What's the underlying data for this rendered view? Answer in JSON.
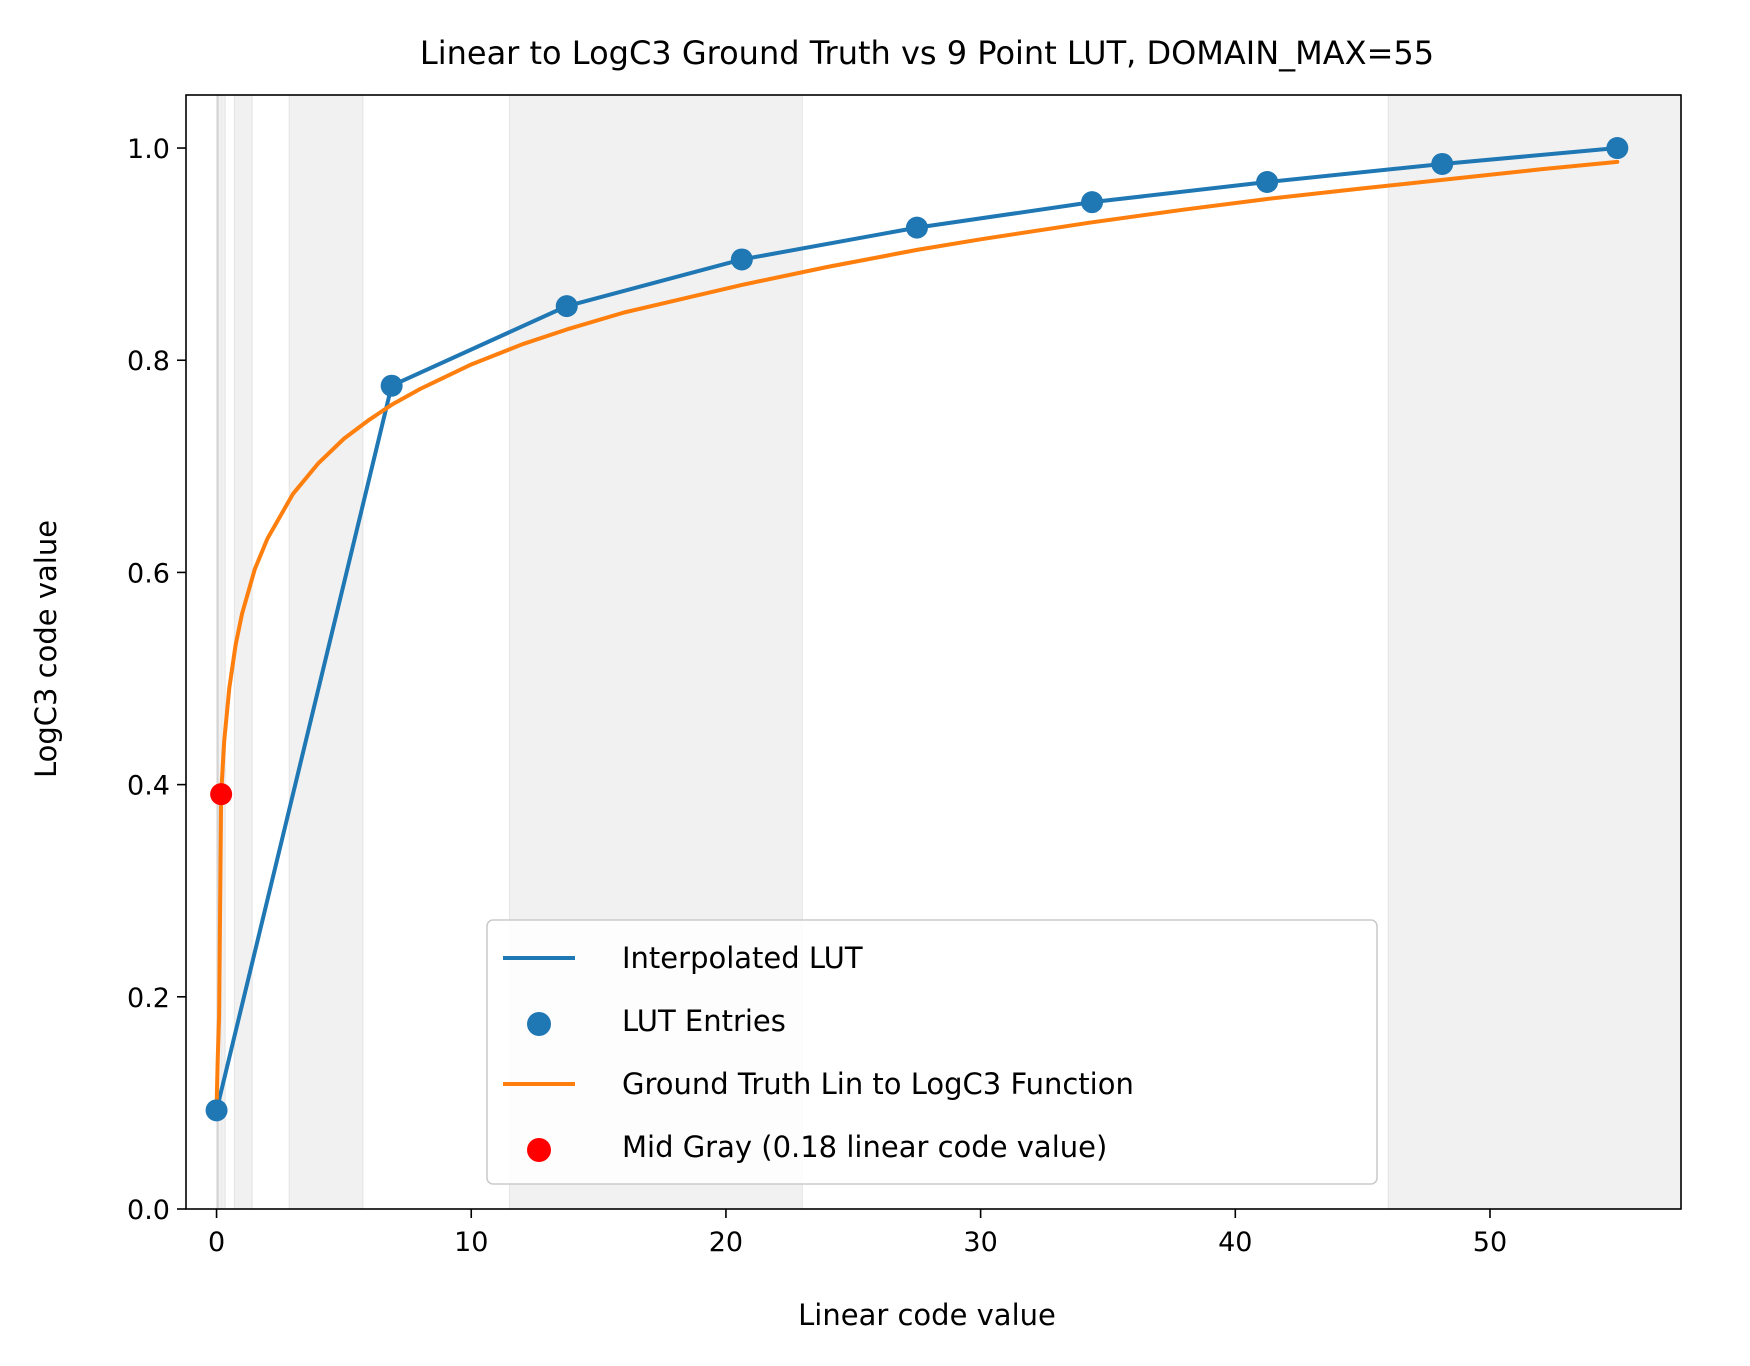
{
  "chart_data": {
    "type": "line",
    "title": "Linear to LogC3 Ground Truth vs 9 Point LUT, DOMAIN_MAX=55",
    "xlabel": "Linear code value",
    "ylabel": "LogC3 code value",
    "xlim": [
      -1.2,
      57.5
    ],
    "ylim": [
      0.0,
      1.05
    ],
    "xticks": [
      0,
      10,
      20,
      30,
      40,
      50
    ],
    "yticks": [
      0.0,
      0.2,
      0.4,
      0.6,
      0.8,
      1.0
    ],
    "xtick_labels": [
      "0",
      "10",
      "20",
      "30",
      "40",
      "50"
    ],
    "ytick_labels": [
      "0.0",
      "0.2",
      "0.4",
      "0.6",
      "0.8",
      "1.0"
    ],
    "grid": false,
    "legend_position": "lower-center",
    "shaded_bands": [
      [
        0.0,
        0.02
      ],
      [
        0.04,
        0.09
      ],
      [
        0.17,
        0.34
      ],
      [
        0.7,
        1.4
      ],
      [
        2.85,
        5.75
      ],
      [
        11.5,
        23.0
      ],
      [
        46.0,
        57.5
      ]
    ],
    "series": [
      {
        "name": "Interpolated LUT",
        "kind": "line",
        "color": "#1f77b4",
        "x": [
          0.0,
          6.875,
          13.75,
          20.625,
          27.5,
          34.375,
          41.25,
          48.125,
          55.0
        ],
        "y": [
          0.093,
          0.776,
          0.851,
          0.895,
          0.925,
          0.949,
          0.968,
          0.985,
          1.0
        ]
      },
      {
        "name": "LUT Entries",
        "kind": "scatter",
        "color": "#1f77b4",
        "x": [
          0.0,
          6.875,
          13.75,
          20.625,
          27.5,
          34.375,
          41.25,
          48.125,
          55.0
        ],
        "y": [
          0.093,
          0.776,
          0.851,
          0.895,
          0.925,
          0.949,
          0.968,
          0.985,
          1.0
        ]
      },
      {
        "name": "Ground Truth Lin to LogC3 Function",
        "kind": "line",
        "color": "#ff7f0e",
        "x": [
          0.0,
          0.01,
          0.02,
          0.05,
          0.1,
          0.18,
          0.3,
          0.5,
          0.75,
          1.0,
          1.5,
          2.0,
          3.0,
          4.0,
          5.0,
          6.0,
          6.875,
          8.0,
          10.0,
          12.0,
          13.75,
          16.0,
          20.625,
          24.0,
          27.5,
          30.0,
          34.375,
          38.0,
          41.25,
          45.0,
          48.125,
          52.0,
          55.0
        ],
        "y": [
          0.093,
          0.105,
          0.116,
          0.145,
          0.182,
          0.391,
          0.441,
          0.491,
          0.532,
          0.561,
          0.603,
          0.632,
          0.674,
          0.703,
          0.726,
          0.744,
          0.758,
          0.773,
          0.796,
          0.815,
          0.829,
          0.845,
          0.871,
          0.888,
          0.904,
          0.914,
          0.93,
          0.942,
          0.952,
          0.962,
          0.97,
          0.98,
          0.987
        ]
      },
      {
        "name": "Mid Gray (0.18 linear code value)",
        "kind": "scatter",
        "color": "#ff0000",
        "x": [
          0.18
        ],
        "y": [
          0.391
        ]
      }
    ]
  }
}
